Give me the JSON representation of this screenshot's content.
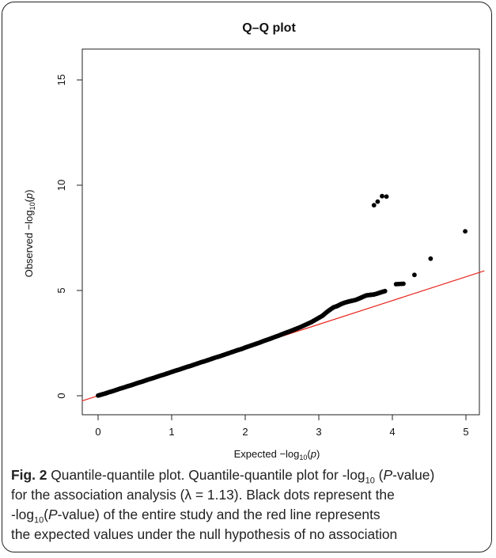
{
  "chart_data": {
    "type": "scatter",
    "title": "Q–Q plot",
    "xlabel": "Expected  −log10(p)",
    "ylabel": "Observed  −log10(p)",
    "xlim": [
      0,
      5
    ],
    "ylim": [
      0,
      16
    ],
    "xticks": [
      0,
      1,
      2,
      3,
      4,
      5
    ],
    "yticks": [
      0,
      5,
      10,
      15
    ],
    "grid": false,
    "reference_line": {
      "slope": 1.13,
      "intercept": 0,
      "color": "#e8271f"
    },
    "point_color": "#000000",
    "series": [
      {
        "x": [
          0.0,
          0.05,
          0.1,
          0.15,
          0.2,
          0.25,
          0.3,
          0.35,
          0.4,
          0.45,
          0.5,
          0.55,
          0.6,
          0.65,
          0.7,
          0.75,
          0.8,
          0.85,
          0.9,
          0.95,
          1.0,
          1.05,
          1.1,
          1.15,
          1.2,
          1.25,
          1.3,
          1.35,
          1.4,
          1.45,
          1.5,
          1.55,
          1.6,
          1.65,
          1.7,
          1.75,
          1.8,
          1.85,
          1.9,
          1.95,
          2.0,
          2.05,
          2.1,
          2.15,
          2.2,
          2.25,
          2.3,
          2.35,
          2.4,
          2.45,
          2.5,
          2.55,
          2.6,
          2.65,
          2.7,
          2.75,
          2.8,
          2.85,
          2.9,
          2.95,
          3.0,
          3.05,
          3.1,
          3.15,
          3.2,
          3.25,
          3.3,
          3.35,
          3.4,
          3.45,
          3.5,
          3.55,
          3.6,
          3.65,
          3.7,
          3.75,
          3.8,
          3.85,
          3.9,
          4.05,
          4.15,
          4.3,
          4.52,
          4.99
        ],
        "y": [
          0.01,
          0.06,
          0.11,
          0.17,
          0.22,
          0.28,
          0.34,
          0.39,
          0.45,
          0.5,
          0.56,
          0.62,
          0.67,
          0.73,
          0.79,
          0.84,
          0.9,
          0.96,
          1.01,
          1.07,
          1.13,
          1.19,
          1.24,
          1.3,
          1.36,
          1.41,
          1.47,
          1.53,
          1.59,
          1.64,
          1.7,
          1.76,
          1.82,
          1.87,
          1.93,
          1.99,
          2.05,
          2.11,
          2.17,
          2.22,
          2.29,
          2.35,
          2.41,
          2.47,
          2.53,
          2.6,
          2.66,
          2.72,
          2.79,
          2.85,
          2.92,
          2.99,
          3.05,
          3.12,
          3.19,
          3.26,
          3.34,
          3.42,
          3.5,
          3.6,
          3.7,
          3.8,
          3.95,
          4.08,
          4.2,
          4.26,
          4.35,
          4.42,
          4.47,
          4.51,
          4.55,
          4.62,
          4.7,
          4.77,
          4.79,
          4.81,
          4.86,
          4.92,
          4.97,
          5.3,
          5.32,
          5.74,
          6.51,
          7.81
        ]
      }
    ],
    "outlier_points": {
      "x": [
        3.75,
        3.8,
        3.86,
        3.92
      ],
      "y": [
        9.05,
        9.22,
        9.48,
        9.46
      ]
    }
  },
  "caption": {
    "fig_label": "Fig. 2",
    "line1_a": " Quantile-quantile plot. Quantile-quantile plot for -log",
    "line1_sub": "10",
    "line1_b": " (",
    "line1_p": "P",
    "line1_c": "-value)",
    "line2": "for the association analysis (λ = 1.13). Black dots represent the",
    "line3_a": "-log",
    "line3_sub": "10",
    "line3_b": "(",
    "line3_p": "P",
    "line3_c": "-value) of the entire study and the red line represents",
    "line4": "the expected values under the null hypothesis of no association"
  }
}
